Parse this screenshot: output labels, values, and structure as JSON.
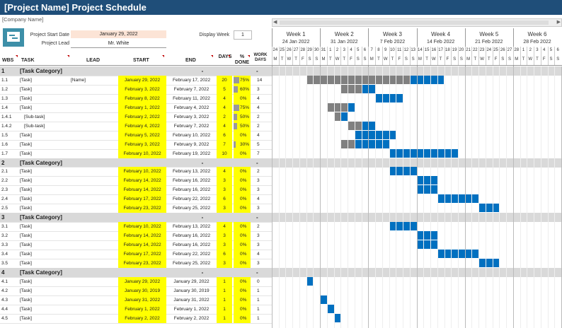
{
  "title": "[Project Name] Project Schedule",
  "company": "[Company Name]",
  "project_start_label": "Project Start Date",
  "project_start_value": "January 29, 2022",
  "project_lead_label": "Project Lead",
  "project_lead_value": "Mr. White",
  "display_week_label": "Display Week",
  "display_week_value": "1",
  "weeks": [
    {
      "label": "Week 1",
      "date": "24 Jan 2022"
    },
    {
      "label": "Week 2",
      "date": "31 Jan 2022"
    },
    {
      "label": "Week 3",
      "date": "7 Feb 2022"
    },
    {
      "label": "Week 4",
      "date": "14 Feb 2022"
    },
    {
      "label": "Week 5",
      "date": "21 Feb 2022"
    },
    {
      "label": "Week 6",
      "date": "28 Feb 2022"
    }
  ],
  "day_numbers": [
    "24",
    "25",
    "26",
    "27",
    "28",
    "29",
    "30",
    "31",
    "1",
    "2",
    "3",
    "4",
    "5",
    "6",
    "7",
    "8",
    "9",
    "10",
    "11",
    "12",
    "13",
    "14",
    "15",
    "16",
    "17",
    "18",
    "19",
    "20",
    "21",
    "22",
    "23",
    "24",
    "25",
    "26",
    "27",
    "28",
    "1",
    "2",
    "3",
    "4",
    "5",
    "6"
  ],
  "day_letters": [
    "M",
    "T",
    "W",
    "T",
    "F",
    "S",
    "S",
    "M",
    "T",
    "W",
    "T",
    "F",
    "S",
    "S",
    "M",
    "T",
    "W",
    "T",
    "F",
    "S",
    "S",
    "M",
    "T",
    "W",
    "T",
    "F",
    "S",
    "S",
    "M",
    "T",
    "W",
    "T",
    "F",
    "S",
    "S",
    "M",
    "T",
    "W",
    "T",
    "F",
    "S",
    "S"
  ],
  "columns": {
    "wbs": "WBS",
    "task": "TASK",
    "lead": "LEAD",
    "start": "START",
    "end": "END",
    "days": "DAYS",
    "done": "% DONE",
    "work": "WORK DAYS"
  },
  "colors": {
    "header": "#1f4e79",
    "done": "#808080",
    "remaining": "#0070c0",
    "highlight": "#ffff00",
    "category": "#d9d9d9"
  },
  "rows": [
    {
      "type": "cat",
      "wbs": "1",
      "task": "[Task Category]",
      "start": "",
      "end": "-",
      "days": "",
      "pct": "",
      "work": "-",
      "p": 0,
      "g": null
    },
    {
      "type": "task",
      "wbs": "1.1",
      "task": "[Task]",
      "lead": "[Name]",
      "start": "January 29, 2022",
      "end": "February 17, 2022",
      "days": "20",
      "pct": "75%",
      "work": "14",
      "p": 75,
      "g": [
        5,
        25
      ]
    },
    {
      "type": "task",
      "wbs": "1.2",
      "task": "[Task]",
      "lead": "",
      "start": "February 3, 2022",
      "end": "February 7, 2022",
      "days": "5",
      "pct": "60%",
      "work": "3",
      "p": 60,
      "g": [
        10,
        15
      ]
    },
    {
      "type": "task",
      "wbs": "1.3",
      "task": "[Task]",
      "lead": "",
      "start": "February 8, 2022",
      "end": "February 11, 2022",
      "days": "4",
      "pct": "0%",
      "work": "4",
      "p": 0,
      "g": [
        15,
        19
      ]
    },
    {
      "type": "task",
      "wbs": "1.4",
      "task": "[Task]",
      "lead": "",
      "start": "February 1, 2022",
      "end": "February 4, 2022",
      "days": "4",
      "pct": "75%",
      "work": "4",
      "p": 75,
      "g": [
        8,
        12
      ]
    },
    {
      "type": "task",
      "wbs": "1.4.1",
      "task": "[Sub-task]",
      "lead": "",
      "start": "February 2, 2022",
      "end": "February 3, 2022",
      "days": "2",
      "pct": "50%",
      "work": "2",
      "p": 50,
      "g": [
        9,
        11
      ]
    },
    {
      "type": "task",
      "wbs": "1.4.2",
      "task": "[Sub-task]",
      "lead": "",
      "start": "February 4, 2022",
      "end": "February 7, 2022",
      "days": "4",
      "pct": "50%",
      "work": "2",
      "p": 50,
      "g": [
        11,
        15
      ]
    },
    {
      "type": "task",
      "wbs": "1.5",
      "task": "[Task]",
      "lead": "",
      "start": "February 5, 2022",
      "end": "February 10, 2022",
      "days": "6",
      "pct": "0%",
      "work": "4",
      "p": 0,
      "g": [
        12,
        18
      ]
    },
    {
      "type": "task",
      "wbs": "1.6",
      "task": "[Task]",
      "lead": "",
      "start": "February 3, 2022",
      "end": "February 9, 2022",
      "days": "7",
      "pct": "30%",
      "work": "5",
      "p": 30,
      "g": [
        10,
        17
      ]
    },
    {
      "type": "task",
      "wbs": "1.7",
      "task": "[Task]",
      "lead": "",
      "start": "February 10, 2022",
      "end": "February 19, 2022",
      "days": "10",
      "pct": "0%",
      "work": "7",
      "p": 0,
      "g": [
        17,
        27
      ]
    },
    {
      "type": "cat",
      "wbs": "2",
      "task": "[Task Category]",
      "start": "",
      "end": "-",
      "days": "",
      "pct": "",
      "work": "-",
      "p": 0,
      "g": null
    },
    {
      "type": "task",
      "wbs": "2.1",
      "task": "[Task]",
      "lead": "",
      "start": "February 10, 2022",
      "end": "February 13, 2022",
      "days": "4",
      "pct": "0%",
      "work": "2",
      "p": 0,
      "g": [
        17,
        21
      ]
    },
    {
      "type": "task",
      "wbs": "2.2",
      "task": "[Task]",
      "lead": "",
      "start": "February 14, 2022",
      "end": "February 16, 2022",
      "days": "3",
      "pct": "0%",
      "work": "3",
      "p": 0,
      "g": [
        21,
        24
      ]
    },
    {
      "type": "task",
      "wbs": "2.3",
      "task": "[Task]",
      "lead": "",
      "start": "February 14, 2022",
      "end": "February 16, 2022",
      "days": "3",
      "pct": "0%",
      "work": "3",
      "p": 0,
      "g": [
        21,
        24
      ]
    },
    {
      "type": "task",
      "wbs": "2.4",
      "task": "[Task]",
      "lead": "",
      "start": "February 17, 2022",
      "end": "February 22, 2022",
      "days": "6",
      "pct": "0%",
      "work": "4",
      "p": 0,
      "g": [
        24,
        30
      ]
    },
    {
      "type": "task",
      "wbs": "2.5",
      "task": "[Task]",
      "lead": "",
      "start": "February 23, 2022",
      "end": "February 25, 2022",
      "days": "3",
      "pct": "0%",
      "work": "3",
      "p": 0,
      "g": [
        30,
        33
      ]
    },
    {
      "type": "cat",
      "wbs": "3",
      "task": "[Task Category]",
      "start": "",
      "end": "-",
      "days": "",
      "pct": "",
      "work": "-",
      "p": 0,
      "g": null
    },
    {
      "type": "task",
      "wbs": "3.1",
      "task": "[Task]",
      "lead": "",
      "start": "February 10, 2022",
      "end": "February 13, 2022",
      "days": "4",
      "pct": "0%",
      "work": "2",
      "p": 0,
      "g": [
        17,
        21
      ]
    },
    {
      "type": "task",
      "wbs": "3.2",
      "task": "[Task]",
      "lead": "",
      "start": "February 14, 2022",
      "end": "February 16, 2022",
      "days": "3",
      "pct": "0%",
      "work": "3",
      "p": 0,
      "g": [
        21,
        24
      ]
    },
    {
      "type": "task",
      "wbs": "3.3",
      "task": "[Task]",
      "lead": "",
      "start": "February 14, 2022",
      "end": "February 16, 2022",
      "days": "3",
      "pct": "0%",
      "work": "3",
      "p": 0,
      "g": [
        21,
        24
      ]
    },
    {
      "type": "task",
      "wbs": "3.4",
      "task": "[Task]",
      "lead": "",
      "start": "February 17, 2022",
      "end": "February 22, 2022",
      "days": "6",
      "pct": "0%",
      "work": "4",
      "p": 0,
      "g": [
        24,
        30
      ]
    },
    {
      "type": "task",
      "wbs": "3.5",
      "task": "[Task]",
      "lead": "",
      "start": "February 23, 2022",
      "end": "February 25, 2022",
      "days": "3",
      "pct": "0%",
      "work": "3",
      "p": 0,
      "g": [
        30,
        33
      ]
    },
    {
      "type": "cat",
      "wbs": "4",
      "task": "[Task Category]",
      "start": "",
      "end": "-",
      "days": "",
      "pct": "",
      "work": "-",
      "p": 0,
      "g": null
    },
    {
      "type": "task",
      "wbs": "4.1",
      "task": "[Task]",
      "lead": "",
      "start": "January 29, 2022",
      "end": "January 29, 2022",
      "days": "1",
      "pct": "0%",
      "work": "0",
      "p": 0,
      "g": [
        5,
        6
      ]
    },
    {
      "type": "task",
      "wbs": "4.2",
      "task": "[Task]",
      "lead": "",
      "start": "January 30, 2019",
      "end": "January 30, 2019",
      "days": "1",
      "pct": "0%",
      "work": "1",
      "p": 0,
      "g": null
    },
    {
      "type": "task",
      "wbs": "4.3",
      "task": "[Task]",
      "lead": "",
      "start": "January 31, 2022",
      "end": "January 31, 2022",
      "days": "1",
      "pct": "0%",
      "work": "1",
      "p": 0,
      "g": [
        7,
        8
      ]
    },
    {
      "type": "task",
      "wbs": "4.4",
      "task": "[Task]",
      "lead": "",
      "start": "February 1, 2022",
      "end": "February 1, 2022",
      "days": "1",
      "pct": "0%",
      "work": "1",
      "p": 0,
      "g": [
        8,
        9
      ]
    },
    {
      "type": "task",
      "wbs": "4.5",
      "task": "[Task]",
      "lead": "",
      "start": "February 2, 2022",
      "end": "February 2, 2022",
      "days": "1",
      "pct": "0%",
      "work": "1",
      "p": 0,
      "g": [
        9,
        10
      ]
    }
  ]
}
